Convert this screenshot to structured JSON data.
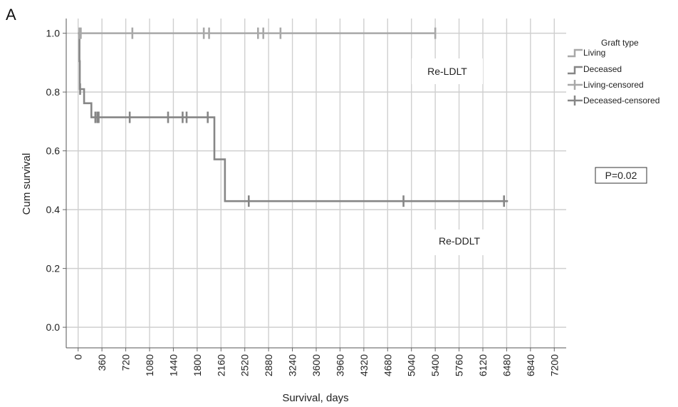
{
  "panel_label": "A",
  "chart_data": {
    "type": "line",
    "subtype": "kaplan-meier step",
    "xlabel": "Survival, days",
    "ylabel": "Cum survival",
    "xlim": [
      -180,
      7380
    ],
    "ylim": [
      -0.07,
      1.05
    ],
    "x_ticks": [
      0,
      360,
      720,
      1080,
      1440,
      1800,
      2160,
      2520,
      2880,
      3240,
      3600,
      3960,
      4320,
      4680,
      5040,
      5400,
      5760,
      6120,
      6480,
      6840,
      7200
    ],
    "y_ticks": [
      0.0,
      0.2,
      0.4,
      0.6,
      0.8,
      1.0
    ],
    "y_tick_labels": [
      "0.0",
      "0.2",
      "0.4",
      "0.6",
      "0.8",
      "1.0"
    ],
    "grid": {
      "vertical": true,
      "horizontal": true
    },
    "legend": {
      "title": "Graft type",
      "placement": "right",
      "entries": [
        "Living",
        "Deceased",
        "Living-censored",
        "Deceased-censored"
      ]
    },
    "series": [
      {
        "name": "Living",
        "color": "#a8a8a8",
        "steps": [
          [
            0,
            1.0
          ],
          [
            5400,
            1.0
          ]
        ],
        "censored": [
          [
            20,
            1.0
          ],
          [
            40,
            1.0
          ],
          [
            820,
            1.0
          ],
          [
            1900,
            1.0
          ],
          [
            1980,
            1.0
          ],
          [
            2720,
            1.0
          ],
          [
            2800,
            1.0
          ],
          [
            3060,
            1.0
          ],
          [
            5400,
            1.0
          ]
        ]
      },
      {
        "name": "Deceased",
        "color": "#868686",
        "steps": [
          [
            0,
            1.0
          ],
          [
            20,
            0.905
          ],
          [
            25,
            0.81
          ],
          [
            90,
            0.762
          ],
          [
            200,
            0.714
          ],
          [
            2000,
            0.714
          ],
          [
            2060,
            0.571
          ],
          [
            2220,
            0.429
          ],
          [
            6500,
            0.429
          ]
        ],
        "censored": [
          [
            30,
            0.81
          ],
          [
            260,
            0.714
          ],
          [
            290,
            0.714
          ],
          [
            310,
            0.714
          ],
          [
            780,
            0.714
          ],
          [
            1360,
            0.714
          ],
          [
            1580,
            0.714
          ],
          [
            1640,
            0.714
          ],
          [
            1960,
            0.714
          ],
          [
            2580,
            0.429
          ],
          [
            4920,
            0.429
          ],
          [
            6440,
            0.429
          ]
        ]
      }
    ],
    "annotations": [
      {
        "text": "Re-LDLT",
        "x": 4500,
        "y": 0.92
      },
      {
        "text": "Re-DDLT",
        "x": 4900,
        "y": 0.395
      }
    ],
    "p_value_label": "P=0.02"
  }
}
